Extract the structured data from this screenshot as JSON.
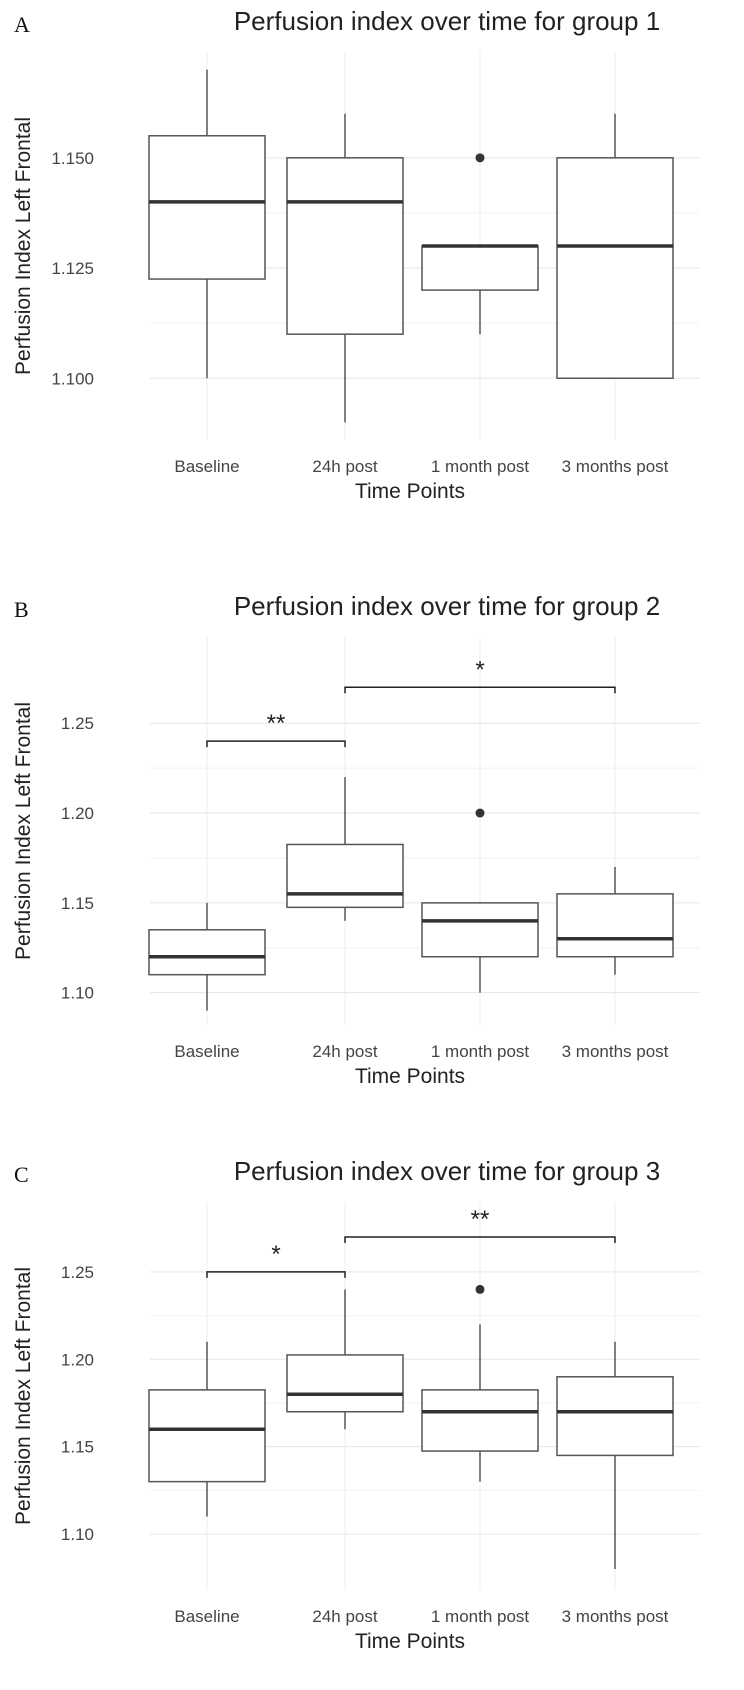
{
  "chart_data": [
    {
      "type": "box",
      "panel_label": "A",
      "title": "Perfusion index over time for group 1",
      "xlabel": "Time Points",
      "ylabel": "Perfusion Index Left Frontal",
      "categories": [
        "Baseline",
        "24h post",
        "1 month post",
        "3 months post"
      ],
      "yticks": [
        1.1,
        1.125,
        1.15
      ],
      "ytick_labels": [
        "1.100",
        "1.125",
        "1.150"
      ],
      "ylim": [
        1.086,
        1.174
      ],
      "grid": true,
      "boxes": [
        {
          "category": "Baseline",
          "whisker_low": 1.1,
          "q1": 1.1225,
          "median": 1.14,
          "q3": 1.155,
          "whisker_high": 1.17,
          "outliers": []
        },
        {
          "category": "24h post",
          "whisker_low": 1.09,
          "q1": 1.11,
          "median": 1.14,
          "q3": 1.15,
          "whisker_high": 1.16,
          "outliers": []
        },
        {
          "category": "1 month post",
          "whisker_low": 1.11,
          "q1": 1.12,
          "median": 1.13,
          "q3": 1.13,
          "whisker_high": 1.13,
          "outliers": [
            1.15
          ]
        },
        {
          "category": "3 months post",
          "whisker_low": 1.1,
          "q1": 1.1,
          "median": 1.13,
          "q3": 1.15,
          "whisker_high": 1.16,
          "outliers": []
        }
      ],
      "significance": []
    },
    {
      "type": "box",
      "panel_label": "B",
      "title": "Perfusion index over time for group 2",
      "xlabel": "Time Points",
      "ylabel": "Perfusion Index Left Frontal",
      "categories": [
        "Baseline",
        "24h post",
        "1 month post",
        "3 months post"
      ],
      "yticks": [
        1.1,
        1.15,
        1.2,
        1.25
      ],
      "ytick_labels": [
        "1.10",
        "1.15",
        "1.20",
        "1.25"
      ],
      "ylim": [
        1.082,
        1.298
      ],
      "grid": true,
      "boxes": [
        {
          "category": "Baseline",
          "whisker_low": 1.09,
          "q1": 1.11,
          "median": 1.12,
          "q3": 1.135,
          "whisker_high": 1.15,
          "outliers": []
        },
        {
          "category": "24h post",
          "whisker_low": 1.14,
          "q1": 1.1475,
          "median": 1.155,
          "q3": 1.1825,
          "whisker_high": 1.22,
          "outliers": []
        },
        {
          "category": "1 month post",
          "whisker_low": 1.1,
          "q1": 1.12,
          "median": 1.14,
          "q3": 1.15,
          "whisker_high": 1.15,
          "outliers": [
            1.2
          ]
        },
        {
          "category": "3 months post",
          "whisker_low": 1.11,
          "q1": 1.12,
          "median": 1.13,
          "q3": 1.155,
          "whisker_high": 1.17,
          "outliers": []
        }
      ],
      "significance": [
        {
          "from": "Baseline",
          "to": "24h post",
          "y": 1.24,
          "label": "**"
        },
        {
          "from": "24h post",
          "to": "3 months post",
          "y": 1.27,
          "label": "*"
        }
      ]
    },
    {
      "type": "box",
      "panel_label": "C",
      "title": "Perfusion index over time for group 3",
      "xlabel": "Time Points",
      "ylabel": "Perfusion Index Left Frontal",
      "categories": [
        "Baseline",
        "24h post",
        "1 month post",
        "3 months post"
      ],
      "yticks": [
        1.1,
        1.15,
        1.2,
        1.25
      ],
      "ytick_labels": [
        "1.10",
        "1.15",
        "1.20",
        "1.25"
      ],
      "ylim": [
        1.068,
        1.29
      ],
      "grid": true,
      "boxes": [
        {
          "category": "Baseline",
          "whisker_low": 1.11,
          "q1": 1.13,
          "median": 1.16,
          "q3": 1.1825,
          "whisker_high": 1.21,
          "outliers": []
        },
        {
          "category": "24h post",
          "whisker_low": 1.16,
          "q1": 1.17,
          "median": 1.18,
          "q3": 1.2025,
          "whisker_high": 1.24,
          "outliers": []
        },
        {
          "category": "1 month post",
          "whisker_low": 1.13,
          "q1": 1.1475,
          "median": 1.17,
          "q3": 1.1825,
          "whisker_high": 1.22,
          "outliers": [
            1.24
          ]
        },
        {
          "category": "3 months post",
          "whisker_low": 1.08,
          "q1": 1.145,
          "median": 1.17,
          "q3": 1.19,
          "whisker_high": 1.21,
          "outliers": []
        }
      ],
      "significance": [
        {
          "from": "Baseline",
          "to": "24h post",
          "y": 1.25,
          "label": "*"
        },
        {
          "from": "24h post",
          "to": "3 months post",
          "y": 1.27,
          "label": "**"
        }
      ]
    }
  ]
}
